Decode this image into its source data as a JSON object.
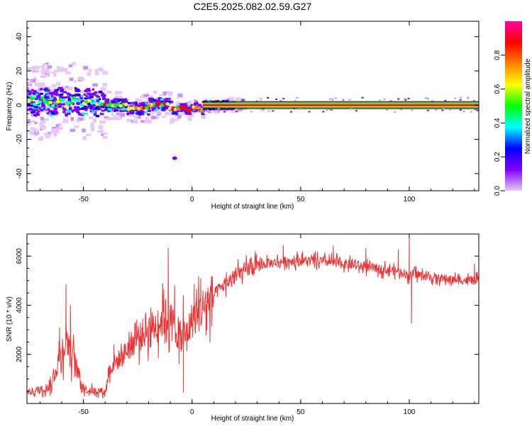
{
  "figure": {
    "title": "C2E5.2025.082.02.59.G27"
  },
  "chart_data": [
    {
      "type": "heatmap",
      "xlabel": "Height of straight line (km)",
      "ylabel": "Frequency (Hz)",
      "xlim": [
        -76,
        132
      ],
      "ylim": [
        -50,
        49
      ],
      "x_ticks": [
        "-50",
        "0",
        "50",
        "100"
      ],
      "y_ticks": [
        "40",
        "20",
        "0",
        "-20",
        "-40"
      ],
      "grid": false,
      "description_of_signal": "Strong carrier near 0 Hz across full height range; broad noisy spread up to ±15 Hz below about -40 km",
      "colorbar": {
        "label": "Normalized spectral amplitude",
        "range": [
          0.0,
          1.0
        ],
        "ticks": [
          "0.0",
          "0.2",
          "0.4",
          "0.6",
          "0.8"
        ],
        "colors": [
          "#e8c8f8",
          "#8000ff",
          "#0000ff",
          "#00ffff",
          "#00ff00",
          "#ffff00",
          "#ff8000",
          "#ff0000",
          "#ff00a0"
        ]
      }
    },
    {
      "type": "line",
      "xlabel": "Height of straight line (km)",
      "ylabel": "SNR (10 * v/v)",
      "xlim": [
        -76,
        132
      ],
      "ylim": [
        0,
        6900
      ],
      "x_ticks": [
        "-50",
        "0",
        "50",
        "100"
      ],
      "y_ticks": [
        "2000",
        "4000",
        "6000"
      ],
      "grid": false,
      "color": "#f03232",
      "trend": [
        [
          -76,
          450
        ],
        [
          -70,
          550
        ],
        [
          -65,
          700
        ],
        [
          -62,
          1600
        ],
        [
          -60,
          2100
        ],
        [
          -58,
          2700
        ],
        [
          -56,
          2300
        ],
        [
          -54,
          1700
        ],
        [
          -52,
          1100
        ],
        [
          -50,
          650
        ],
        [
          -48,
          550
        ],
        [
          -45,
          500
        ],
        [
          -42,
          520
        ],
        [
          -40,
          450
        ],
        [
          -38,
          1400
        ],
        [
          -35,
          1700
        ],
        [
          -32,
          1900
        ],
        [
          -30,
          2200
        ],
        [
          -27,
          2500
        ],
        [
          -24,
          2700
        ],
        [
          -21,
          3000
        ],
        [
          -18,
          3100
        ],
        [
          -15,
          3300
        ],
        [
          -12,
          3550
        ],
        [
          -9,
          3300
        ],
        [
          -6,
          2700
        ],
        [
          -3,
          2700
        ],
        [
          0,
          3400
        ],
        [
          3,
          3700
        ],
        [
          6,
          4000
        ],
        [
          9,
          4300
        ],
        [
          12,
          4600
        ],
        [
          15,
          4850
        ],
        [
          18,
          5050
        ],
        [
          21,
          5250
        ],
        [
          24,
          5400
        ],
        [
          27,
          5520
        ],
        [
          30,
          5600
        ],
        [
          35,
          5700
        ],
        [
          40,
          5760
        ],
        [
          45,
          5800
        ],
        [
          50,
          5820
        ],
        [
          55,
          5800
        ],
        [
          60,
          5780
        ],
        [
          65,
          5740
        ],
        [
          70,
          5680
        ],
        [
          75,
          5620
        ],
        [
          80,
          5560
        ],
        [
          85,
          5500
        ],
        [
          90,
          5440
        ],
        [
          95,
          5380
        ],
        [
          98,
          5300
        ],
        [
          100,
          5150
        ],
        [
          102,
          5300
        ],
        [
          106,
          5200
        ],
        [
          112,
          5120
        ],
        [
          118,
          5060
        ],
        [
          124,
          5020
        ],
        [
          132,
          5000
        ]
      ],
      "spikes": [
        [
          -58,
          4850
        ],
        [
          -61,
          3100
        ],
        [
          -56,
          4000
        ],
        [
          -36,
          2400
        ],
        [
          -26,
          3300
        ],
        [
          -19,
          3900
        ],
        [
          -13,
          4650
        ],
        [
          -11,
          6350
        ],
        [
          -8,
          4800
        ],
        [
          -4,
          4400
        ],
        [
          -6,
          1600
        ],
        [
          -4,
          450
        ],
        [
          1,
          4850
        ],
        [
          4,
          5100
        ],
        [
          42,
          6450
        ],
        [
          65,
          6420
        ],
        [
          80,
          6320
        ],
        [
          95,
          6280
        ],
        [
          100,
          6900
        ],
        [
          101,
          3250
        ],
        [
          130,
          5700
        ]
      ]
    }
  ]
}
